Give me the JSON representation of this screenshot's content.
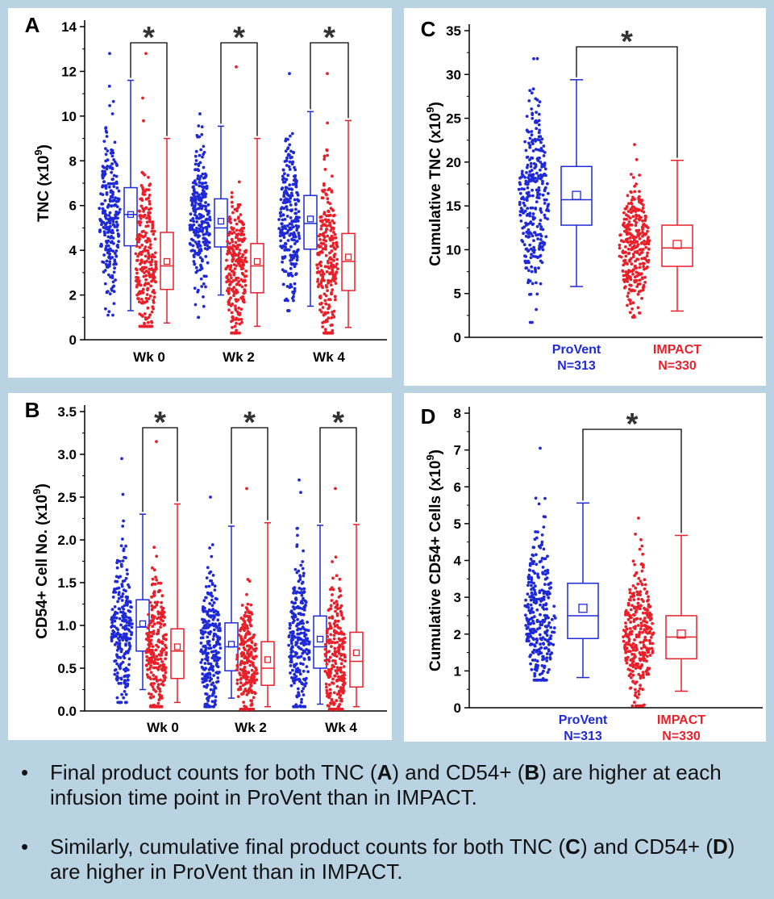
{
  "colors": {
    "provent": "#1f2ad6",
    "impact": "#e8202a",
    "background": "#b9d3e3",
    "asterisk": "#333333"
  },
  "bullets": [
    {
      "dot": "•",
      "parts": [
        "Final product counts for both TNC (",
        "A",
        ") and CD54+ (",
        "B",
        ") are higher at each infusion time point in ProVent than in IMPACT."
      ]
    },
    {
      "dot": "•",
      "parts": [
        "Similarly, cumulative final product counts for both TNC (",
        "C",
        ") and CD54+ (",
        "D",
        ") are higher in ProVent than in IMPACT."
      ]
    }
  ],
  "chart_data": [
    {
      "panel_label": "A",
      "type": "box",
      "ylabel": "TNC (x10",
      "ylabel_sup": "9",
      "ylabel_close": ")",
      "ylim": [
        0,
        14
      ],
      "yticks": [
        0,
        2,
        4,
        6,
        8,
        10,
        12,
        14
      ],
      "categories": [
        "Wk 0",
        "Wk 2",
        "Wk 4"
      ],
      "significance": "*",
      "groups": [
        {
          "category": "Wk 0",
          "series": "ProVent",
          "whisker_low": 1.3,
          "q1": 4.2,
          "median": 5.6,
          "q3": 6.8,
          "whisker_high": 11.6,
          "mean": 5.6,
          "dots_min": 1.1,
          "dots_max": 12.8
        },
        {
          "category": "Wk 0",
          "series": "IMPACT",
          "whisker_low": 0.75,
          "q1": 2.25,
          "median": 3.3,
          "q3": 4.8,
          "whisker_high": 9.0,
          "mean": 3.5,
          "dots_min": 0.6,
          "dots_max": 12.8
        },
        {
          "category": "Wk 2",
          "series": "ProVent",
          "whisker_low": 2.0,
          "q1": 4.15,
          "median": 5.0,
          "q3": 6.3,
          "whisker_high": 9.55,
          "mean": 5.3,
          "dots_min": 1.0,
          "dots_max": 10.1
        },
        {
          "category": "Wk 2",
          "series": "IMPACT",
          "whisker_low": 0.6,
          "q1": 2.1,
          "median": 3.3,
          "q3": 4.3,
          "whisker_high": 9.0,
          "mean": 3.5,
          "dots_min": 0.3,
          "dots_max": 12.2
        },
        {
          "category": "Wk 4",
          "series": "ProVent",
          "whisker_low": 1.5,
          "q1": 4.05,
          "median": 5.2,
          "q3": 6.45,
          "whisker_high": 10.2,
          "mean": 5.4,
          "dots_min": 1.3,
          "dots_max": 11.9
        },
        {
          "category": "Wk 4",
          "series": "IMPACT",
          "whisker_low": 0.55,
          "q1": 2.2,
          "median": 3.5,
          "q3": 4.75,
          "whisker_high": 9.8,
          "mean": 3.7,
          "dots_min": 0.3,
          "dots_max": 11.9
        }
      ]
    },
    {
      "panel_label": "B",
      "type": "box",
      "ylabel": "CD54+ Cell No. (x10",
      "ylabel_sup": "9",
      "ylabel_close": ")",
      "ylim": [
        0,
        3.5
      ],
      "yticks": [
        "0.0",
        "0.5",
        "1.0",
        "1.5",
        "2.0",
        "2.5",
        "3.0",
        "3.5"
      ],
      "categories": [
        "Wk 0",
        "Wk 2",
        "Wk 4"
      ],
      "significance": "*",
      "groups": [
        {
          "category": "Wk 0",
          "series": "ProVent",
          "whisker_low": 0.25,
          "q1": 0.7,
          "median": 0.98,
          "q3": 1.3,
          "whisker_high": 2.3,
          "mean": 1.02,
          "dots_min": 0.1,
          "dots_max": 2.95
        },
        {
          "category": "Wk 0",
          "series": "IMPACT",
          "whisker_low": 0.1,
          "q1": 0.38,
          "median": 0.7,
          "q3": 0.96,
          "whisker_high": 2.42,
          "mean": 0.75,
          "dots_min": 0.05,
          "dots_max": 3.15
        },
        {
          "category": "Wk 2",
          "series": "ProVent",
          "whisker_low": 0.15,
          "q1": 0.47,
          "median": 0.75,
          "q3": 1.03,
          "whisker_high": 2.16,
          "mean": 0.78,
          "dots_min": 0.05,
          "dots_max": 2.5
        },
        {
          "category": "Wk 2",
          "series": "IMPACT",
          "whisker_low": 0.05,
          "q1": 0.3,
          "median": 0.5,
          "q3": 0.81,
          "whisker_high": 2.2,
          "mean": 0.6,
          "dots_min": 0.02,
          "dots_max": 2.6
        },
        {
          "category": "Wk 4",
          "series": "ProVent",
          "whisker_low": 0.08,
          "q1": 0.5,
          "median": 0.75,
          "q3": 1.11,
          "whisker_high": 2.17,
          "mean": 0.84,
          "dots_min": 0.05,
          "dots_max": 2.7
        },
        {
          "category": "Wk 4",
          "series": "IMPACT",
          "whisker_low": 0.05,
          "q1": 0.28,
          "median": 0.58,
          "q3": 0.92,
          "whisker_high": 2.18,
          "mean": 0.68,
          "dots_min": 0.02,
          "dots_max": 2.6
        }
      ]
    },
    {
      "panel_label": "C",
      "type": "box",
      "ylabel": "Cumulative TNC (x10",
      "ylabel_sup": "9",
      "ylabel_close": ")",
      "ylim": [
        0,
        35
      ],
      "yticks": [
        0,
        5,
        10,
        15,
        20,
        25,
        30,
        35
      ],
      "categories": [
        {
          "name": "ProVent",
          "n": "N=313"
        },
        {
          "name": "IMPACT",
          "n": "N=330"
        }
      ],
      "significance": "*",
      "groups": [
        {
          "category": "ProVent",
          "series": "ProVent",
          "whisker_low": 5.8,
          "q1": 12.8,
          "median": 15.7,
          "q3": 19.5,
          "whisker_high": 29.4,
          "mean": 16.2,
          "dots_min": 1.7,
          "dots_max": 31.8
        },
        {
          "category": "IMPACT",
          "series": "IMPACT",
          "whisker_low": 3.0,
          "q1": 8.1,
          "median": 10.2,
          "q3": 12.8,
          "whisker_high": 20.2,
          "mean": 10.6,
          "dots_min": 2.3,
          "dots_max": 22.0
        }
      ]
    },
    {
      "panel_label": "D",
      "type": "box",
      "ylabel": "Cumulative CD54+ Cells (x10",
      "ylabel_sup": "9",
      "ylabel_close": ")",
      "ylim": [
        0,
        8
      ],
      "yticks": [
        0,
        1,
        2,
        3,
        4,
        5,
        6,
        7,
        8
      ],
      "categories": [
        {
          "name": "ProVent",
          "n": "N=313"
        },
        {
          "name": "IMPACT",
          "n": "N=330"
        }
      ],
      "significance": "*",
      "groups": [
        {
          "category": "ProVent",
          "series": "ProVent",
          "whisker_low": 0.82,
          "q1": 1.88,
          "median": 2.5,
          "q3": 3.38,
          "whisker_high": 5.56,
          "mean": 2.7,
          "dots_min": 0.75,
          "dots_max": 7.05
        },
        {
          "category": "IMPACT",
          "series": "IMPACT",
          "whisker_low": 0.45,
          "q1": 1.33,
          "median": 1.92,
          "q3": 2.5,
          "whisker_high": 4.68,
          "mean": 2.0,
          "dots_min": 0.05,
          "dots_max": 5.15
        }
      ]
    }
  ]
}
